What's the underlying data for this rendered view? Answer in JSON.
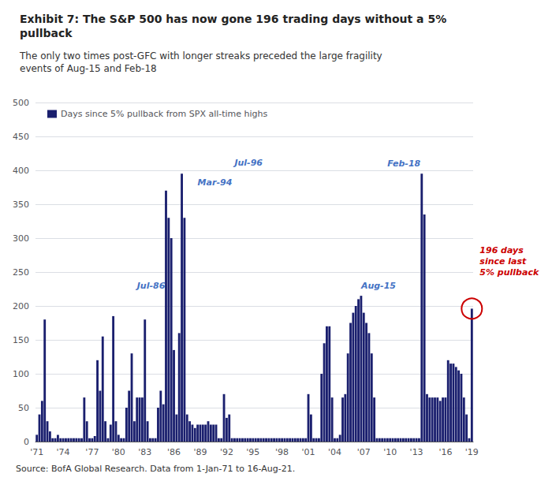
{
  "chart_data": {
    "type": "bar",
    "title": "Exhibit 7: The S&P 500 has now gone 196 trading days without a 5%\npullback",
    "subtitle": "The only two times post-GFC with longer streaks preceded the large fragility\nevents of Aug-15 and Feb-18",
    "source": "Source: BofA Global Research. Data from 1-Jan-71 to 16-Aug-21.",
    "categories": [
      "'71",
      null,
      null,
      null,
      null,
      null,
      null,
      null,
      null,
      null,
      "'74",
      null,
      null,
      null,
      null,
      null,
      null,
      null,
      null,
      null,
      null,
      "'77",
      null,
      null,
      null,
      null,
      null,
      null,
      null,
      null,
      null,
      "'80",
      null,
      null,
      null,
      null,
      null,
      null,
      null,
      null,
      null,
      "'83",
      null,
      null,
      null,
      null,
      null,
      null,
      null,
      null,
      null,
      null,
      "'86",
      null,
      null,
      null,
      null,
      null,
      null,
      null,
      null,
      null,
      "'89",
      null,
      null,
      null,
      null,
      null,
      null,
      null,
      null,
      null,
      "'92",
      null,
      null,
      null,
      null,
      null,
      null,
      null,
      null,
      null,
      "'95",
      null,
      null,
      null,
      null,
      null,
      null,
      null,
      null,
      null,
      null,
      "'98",
      null,
      null,
      null,
      null,
      null,
      null,
      null,
      null,
      null,
      "'01",
      null,
      null,
      null,
      null,
      null,
      null,
      null,
      null,
      null,
      "'04",
      null,
      null,
      null,
      null,
      null,
      null,
      null,
      null,
      null,
      null,
      "'07",
      null,
      null,
      null,
      null,
      null,
      null,
      null,
      null,
      null,
      "'10",
      null,
      null,
      null,
      null,
      null,
      null,
      null,
      null,
      null,
      "'13",
      null,
      null,
      null,
      null,
      null,
      null,
      null,
      null,
      null,
      null,
      "'16",
      null,
      null,
      null,
      null,
      null,
      null,
      null,
      null,
      null,
      "'19"
    ],
    "series": [
      {
        "name": "Days since 5% pullback from SPX all-time highs",
        "color": "#1a1f6e",
        "values": [
          10,
          40,
          60,
          180,
          30,
          15,
          5,
          5,
          10,
          5,
          5,
          5,
          5,
          5,
          5,
          5,
          5,
          5,
          65,
          30,
          5,
          5,
          8,
          120,
          75,
          155,
          30,
          5,
          25,
          185,
          30,
          10,
          5,
          5,
          50,
          75,
          130,
          30,
          65,
          65,
          65,
          180,
          30,
          5,
          5,
          5,
          50,
          75,
          55,
          370,
          330,
          300,
          135,
          40,
          160,
          395,
          330,
          40,
          30,
          25,
          20,
          25,
          25,
          25,
          25,
          30,
          25,
          25,
          25,
          5,
          5,
          70,
          35,
          40,
          5,
          5,
          5,
          5,
          5,
          5,
          5,
          5,
          5,
          5,
          5,
          5,
          5,
          5,
          5,
          5,
          5,
          5,
          5,
          5,
          5,
          5,
          5,
          5,
          5,
          5,
          5,
          5,
          5,
          70,
          40,
          5,
          5,
          5,
          100,
          145,
          170,
          170,
          65,
          5,
          5,
          10,
          65,
          70,
          130,
          175,
          190,
          200,
          210,
          215,
          190,
          175,
          160,
          130,
          65,
          5,
          5,
          5,
          5,
          5,
          5,
          5,
          5,
          5,
          5,
          5,
          5,
          5,
          5,
          5,
          5,
          5,
          395,
          335,
          70,
          65,
          65,
          65,
          65,
          60,
          65,
          65,
          120,
          115,
          115,
          110,
          105,
          100,
          65,
          40,
          5,
          196
        ]
      }
    ],
    "legend": "upper left",
    "ylim": [
      0,
      500
    ],
    "yticks": [
      0,
      50,
      100,
      150,
      200,
      250,
      300,
      350,
      400,
      450,
      500
    ],
    "grid": true,
    "annotations": [
      {
        "text": "Jul-86",
        "x": 38,
        "y": 215,
        "color": "#4472c4"
      },
      {
        "text": "Mar-94",
        "x": 61,
        "y": 368,
        "color": "#4472c4"
      },
      {
        "text": "Jul-96",
        "x": 75,
        "y": 397,
        "color": "#4472c4"
      },
      {
        "text": "Aug-15",
        "x": 123,
        "y": 215,
        "color": "#4472c4"
      },
      {
        "text": "Feb-18",
        "x": 133,
        "y": 395,
        "color": "#4472c4"
      }
    ],
    "callout": {
      "text": "196 days\nsince last\n5% pullback",
      "x": 165,
      "y": 290,
      "circle_y": 196,
      "color": "#cc0000"
    }
  }
}
